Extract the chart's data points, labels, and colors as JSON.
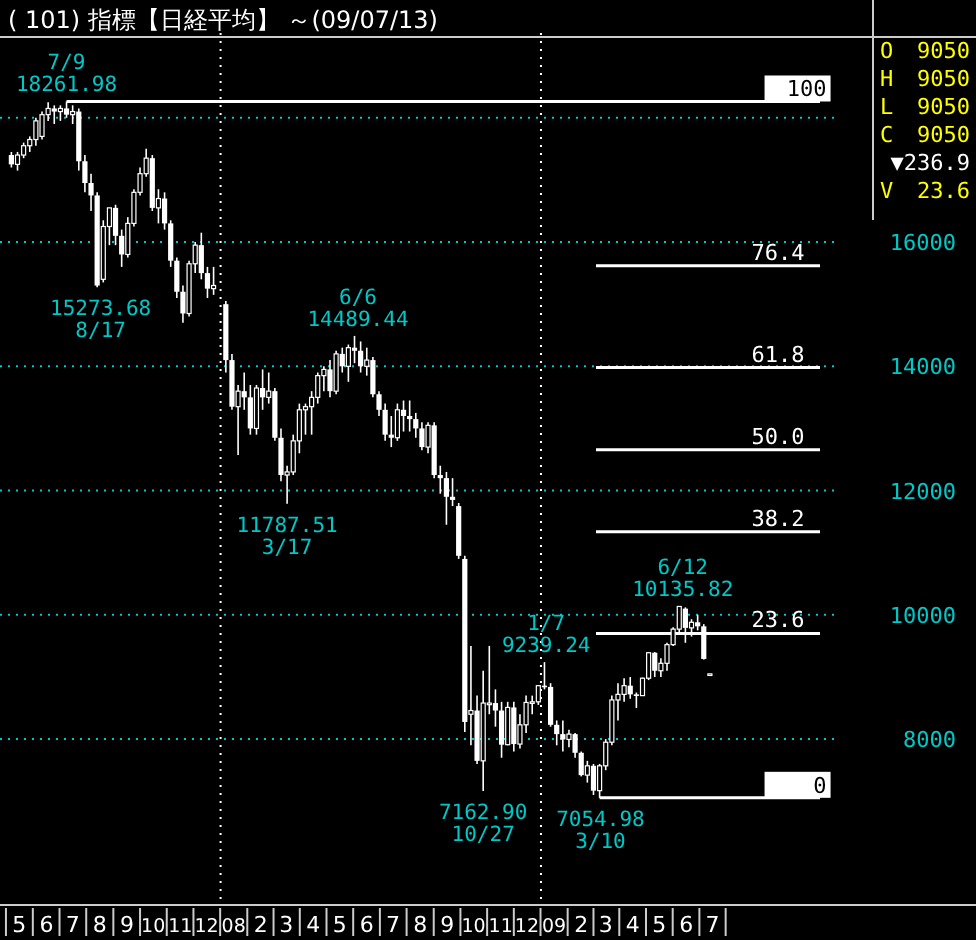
{
  "chart_data": {
    "type": "candlestick",
    "title": "( 101) 指標【日経平均】 ～(09/07/13)",
    "x": [
      "2007-05-07",
      "2007-05-14",
      "2007-05-21",
      "2007-05-28",
      "2007-06-04",
      "2007-06-11",
      "2007-06-18",
      "2007-06-25",
      "2007-07-02",
      "2007-07-09",
      "2007-07-16",
      "2007-07-23",
      "2007-07-30",
      "2007-08-06",
      "2007-08-13",
      "2007-08-20",
      "2007-08-27",
      "2007-09-03",
      "2007-09-10",
      "2007-09-17",
      "2007-09-24",
      "2007-10-01",
      "2007-10-08",
      "2007-10-15",
      "2007-10-22",
      "2007-10-29",
      "2007-11-05",
      "2007-11-12",
      "2007-11-19",
      "2007-11-26",
      "2007-12-03",
      "2007-12-10",
      "2007-12-17",
      "2007-12-24",
      "2008-01-07",
      "2008-01-14",
      "2008-01-21",
      "2008-01-28",
      "2008-02-04",
      "2008-02-11",
      "2008-02-18",
      "2008-02-25",
      "2008-03-03",
      "2008-03-10",
      "2008-03-17",
      "2008-03-24",
      "2008-03-31",
      "2008-04-07",
      "2008-04-14",
      "2008-04-21",
      "2008-04-28",
      "2008-05-05",
      "2008-05-12",
      "2008-05-19",
      "2008-05-26",
      "2008-06-02",
      "2008-06-09",
      "2008-06-16",
      "2008-06-23",
      "2008-06-30",
      "2008-07-07",
      "2008-07-14",
      "2008-07-21",
      "2008-07-28",
      "2008-08-04",
      "2008-08-11",
      "2008-08-18",
      "2008-08-25",
      "2008-09-01",
      "2008-09-08",
      "2008-09-15",
      "2008-09-22",
      "2008-09-29",
      "2008-10-06",
      "2008-10-13",
      "2008-10-20",
      "2008-10-27",
      "2008-11-03",
      "2008-11-10",
      "2008-11-17",
      "2008-11-24",
      "2008-12-01",
      "2008-12-08",
      "2008-12-15",
      "2008-12-22",
      "2008-12-29",
      "2009-01-05",
      "2009-01-12",
      "2009-01-19",
      "2009-01-26",
      "2009-02-02",
      "2009-02-09",
      "2009-02-16",
      "2009-02-23",
      "2009-03-02",
      "2009-03-09",
      "2009-03-16",
      "2009-03-23",
      "2009-03-30",
      "2009-04-06",
      "2009-04-13",
      "2009-04-20",
      "2009-04-27",
      "2009-05-04",
      "2009-05-11",
      "2009-05-18",
      "2009-05-25",
      "2009-06-01",
      "2009-06-08",
      "2009-06-15",
      "2009-06-22",
      "2009-06-29",
      "2009-07-06",
      "2009-07-13"
    ],
    "ohlc": [
      [
        17400,
        17450,
        17200,
        17250
      ],
      [
        17250,
        17450,
        17150,
        17400
      ],
      [
        17400,
        17600,
        17350,
        17550
      ],
      [
        17550,
        17700,
        17450,
        17650
      ],
      [
        17650,
        18000,
        17550,
        17950
      ],
      [
        17700,
        18100,
        17650,
        18050
      ],
      [
        18050,
        18250,
        17950,
        18150
      ],
      [
        18150,
        18200,
        17900,
        18100
      ],
      [
        18100,
        18200,
        17950,
        18150
      ],
      [
        18150,
        18261.98,
        18000,
        18050
      ],
      [
        18050,
        18200,
        17900,
        18100
      ],
      [
        18100,
        18150,
        17150,
        17300
      ],
      [
        17300,
        17400,
        16800,
        16950
      ],
      [
        16950,
        17100,
        16500,
        16750
      ],
      [
        16750,
        16800,
        15273.68,
        15300
      ],
      [
        15400,
        16350,
        15350,
        16250
      ],
      [
        16250,
        16550,
        15950,
        16550
      ],
      [
        16550,
        16600,
        15950,
        16100
      ],
      [
        16100,
        16200,
        15600,
        15800
      ],
      [
        15800,
        16400,
        15750,
        16300
      ],
      [
        16300,
        16850,
        16250,
        16800
      ],
      [
        16800,
        17200,
        16750,
        17100
      ],
      [
        17100,
        17500,
        17050,
        17350
      ],
      [
        17350,
        17400,
        16500,
        16550
      ],
      [
        16550,
        16850,
        16300,
        16700
      ],
      [
        16700,
        16800,
        16200,
        16300
      ],
      [
        16300,
        16350,
        15600,
        15700
      ],
      [
        15700,
        15750,
        15100,
        15200
      ],
      [
        15200,
        15300,
        14700,
        14850
      ],
      [
        14850,
        15700,
        14800,
        15650
      ],
      [
        15650,
        16000,
        15500,
        15950
      ],
      [
        15950,
        16150,
        15400,
        15500
      ],
      [
        15500,
        15600,
        15100,
        15250
      ],
      [
        15250,
        15600,
        15150,
        15300
      ],
      [
        15000,
        15050,
        13900,
        14100
      ],
      [
        14100,
        14200,
        13300,
        13350
      ],
      [
        13350,
        13700,
        12572,
        13600
      ],
      [
        13600,
        13900,
        13300,
        13500
      ],
      [
        13500,
        13700,
        12900,
        13000
      ],
      [
        13000,
        13700,
        12900,
        13650
      ],
      [
        13650,
        13950,
        13300,
        13500
      ],
      [
        13500,
        13900,
        13400,
        13600
      ],
      [
        13600,
        13650,
        12800,
        12850
      ],
      [
        12850,
        13000,
        12150,
        12250
      ],
      [
        12250,
        12400,
        11787.51,
        12300
      ],
      [
        12300,
        12900,
        12250,
        12800
      ],
      [
        12800,
        13400,
        12600,
        13300
      ],
      [
        13300,
        13400,
        12900,
        13350
      ],
      [
        13350,
        13600,
        12900,
        13500
      ],
      [
        13500,
        13900,
        13400,
        13850
      ],
      [
        13850,
        14000,
        13600,
        13950
      ],
      [
        13950,
        14100,
        13500,
        13600
      ],
      [
        13600,
        14250,
        13550,
        14200
      ],
      [
        14200,
        14300,
        13900,
        14000
      ],
      [
        14000,
        14350,
        13750,
        14300
      ],
      [
        14300,
        14489.44,
        14050,
        14250
      ],
      [
        14250,
        14400,
        13900,
        14000
      ],
      [
        14000,
        14300,
        13850,
        14100
      ],
      [
        14100,
        14150,
        13500,
        13550
      ],
      [
        13550,
        13600,
        13200,
        13300
      ],
      [
        13300,
        13400,
        12800,
        12900
      ],
      [
        12900,
        13200,
        12700,
        12850
      ],
      [
        12850,
        13400,
        12800,
        13300
      ],
      [
        13300,
        13450,
        12950,
        13200
      ],
      [
        13200,
        13450,
        12950,
        13150
      ],
      [
        13150,
        13250,
        12850,
        13000
      ],
      [
        13000,
        13100,
        12650,
        12700
      ],
      [
        12700,
        13100,
        12600,
        13050
      ],
      [
        13050,
        13100,
        12200,
        12250
      ],
      [
        12250,
        12400,
        11950,
        12200
      ],
      [
        12200,
        12300,
        11450,
        11900
      ],
      [
        11900,
        12200,
        11750,
        11850
      ],
      [
        11750,
        11800,
        10900,
        10950
      ],
      [
        10900,
        10950,
        8115,
        8276
      ],
      [
        8400,
        9500,
        7900,
        8460
      ],
      [
        8460,
        8700,
        7600,
        7650
      ],
      [
        7650,
        9100,
        7162.9,
        8580
      ],
      [
        8580,
        9500,
        8400,
        8580
      ],
      [
        8580,
        8800,
        8200,
        8460
      ],
      [
        8460,
        8600,
        7700,
        7910
      ],
      [
        7910,
        8600,
        7900,
        8510
      ],
      [
        8510,
        8600,
        7800,
        7920
      ],
      [
        7920,
        8400,
        7850,
        8230
      ],
      [
        8230,
        8700,
        8100,
        8590
      ],
      [
        8590,
        8700,
        8400,
        8600
      ],
      [
        8600,
        8860,
        8550,
        8860
      ],
      [
        8860,
        9239.24,
        8800,
        8840
      ],
      [
        8840,
        8900,
        8200,
        8230
      ],
      [
        8230,
        8300,
        7900,
        8080
      ],
      [
        8080,
        8300,
        7800,
        7995
      ],
      [
        7995,
        8150,
        7870,
        8080
      ],
      [
        8080,
        8100,
        7700,
        7780
      ],
      [
        7780,
        7800,
        7400,
        7420
      ],
      [
        7420,
        7650,
        7300,
        7570
      ],
      [
        7570,
        7600,
        7100,
        7170
      ],
      [
        7170,
        7600,
        7054.98,
        7570
      ],
      [
        7570,
        8000,
        7500,
        7950
      ],
      [
        7950,
        8700,
        7900,
        8630
      ],
      [
        8630,
        8900,
        8300,
        8720
      ],
      [
        8720,
        8980,
        8600,
        8860
      ],
      [
        8860,
        9000,
        8650,
        8720
      ],
      [
        8720,
        8750,
        8500,
        8700
      ],
      [
        8700,
        8990,
        8700,
        8980
      ],
      [
        8980,
        9400,
        8950,
        9390
      ],
      [
        9390,
        9400,
        9000,
        9100
      ],
      [
        9100,
        9300,
        9000,
        9220
      ],
      [
        9220,
        9550,
        9100,
        9520
      ],
      [
        9520,
        9800,
        9500,
        9770
      ],
      [
        9770,
        10135.82,
        9700,
        10135
      ],
      [
        10100,
        10120,
        9550,
        9790
      ],
      [
        9790,
        9930,
        9650,
        9880
      ],
      [
        9880,
        10000,
        9750,
        9815
      ],
      [
        9815,
        9850,
        9280,
        9290
      ],
      [
        9050,
        9050,
        9050,
        9050
      ]
    ],
    "xlim": [
      "2007-04-24",
      "2010-05-13"
    ],
    "xticks": [
      {
        "value": "2007-05-16",
        "label": "5"
      },
      {
        "value": "2007-06-16",
        "label": "6"
      },
      {
        "value": "2007-07-16",
        "label": "7"
      },
      {
        "value": "2007-08-16",
        "label": "8"
      },
      {
        "value": "2007-09-16",
        "label": "9"
      },
      {
        "value": "2007-10-16",
        "label": "10"
      },
      {
        "value": "2007-11-16",
        "label": "11"
      },
      {
        "value": "2007-12-16",
        "label": "12"
      },
      {
        "value": "2008-01-16",
        "label": "08"
      },
      {
        "value": "2008-02-16",
        "label": "2"
      },
      {
        "value": "2008-03-16",
        "label": "3"
      },
      {
        "value": "2008-04-16",
        "label": "4"
      },
      {
        "value": "2008-05-16",
        "label": "5"
      },
      {
        "value": "2008-06-16",
        "label": "6"
      },
      {
        "value": "2008-07-16",
        "label": "7"
      },
      {
        "value": "2008-08-16",
        "label": "8"
      },
      {
        "value": "2008-09-16",
        "label": "9"
      },
      {
        "value": "2008-10-16",
        "label": "10"
      },
      {
        "value": "2008-11-16",
        "label": "11"
      },
      {
        "value": "2008-12-16",
        "label": "12"
      },
      {
        "value": "2009-01-16",
        "label": "09"
      },
      {
        "value": "2009-02-16",
        "label": "2"
      },
      {
        "value": "2009-03-16",
        "label": "3"
      },
      {
        "value": "2009-04-16",
        "label": "4"
      },
      {
        "value": "2009-05-16",
        "label": "5"
      },
      {
        "value": "2009-06-16",
        "label": "6"
      },
      {
        "value": "2009-07-16",
        "label": "7"
      }
    ],
    "ylim": [
      5330,
      19300
    ],
    "yticks": [
      8000,
      10000,
      12000,
      14000,
      16000,
      {
        "value": 18000,
        "label": null
      }
    ],
    "grid": "y",
    "ref_lines": [
      {
        "axis": "x",
        "value": "2008-01-01",
        "color": "#ffffff",
        "line_style": "dotted"
      },
      {
        "axis": "x",
        "value": "2009-01-01",
        "color": "#ffffff",
        "line_style": "dotted"
      },
      {
        "axis": "y",
        "value": 18261.98,
        "color": "#ffffff"
      },
      {
        "axis": "y",
        "value": 15617,
        "color": "#ffffff"
      },
      {
        "axis": "y",
        "value": 13980,
        "color": "#ffffff"
      },
      {
        "axis": "y",
        "value": 12658,
        "color": "#ffffff"
      },
      {
        "axis": "y",
        "value": 11336,
        "color": "#ffffff"
      },
      {
        "axis": "y",
        "value": 9700,
        "color": "#ffffff"
      },
      {
        "axis": "y",
        "value": 7054.98,
        "color": "#ffffff"
      }
    ],
    "annotations": [
      {
        "text": "100",
        "x": "2009-10-20",
        "y": 18261.98
      },
      {
        "text": "76.4",
        "x": "2009-10-20",
        "y": 15617
      },
      {
        "text": "61.8",
        "x": "2009-10-20",
        "y": 13980
      },
      {
        "text": "50.0",
        "x": "2009-10-20",
        "y": 12658
      },
      {
        "text": "38.2",
        "x": "2009-10-20",
        "y": 11336
      },
      {
        "text": "23.6",
        "x": "2009-10-20",
        "y": 9700
      },
      {
        "text": "0",
        "x": "2009-10-20",
        "y": 7054.98
      },
      {
        "text": "7/9",
        "x": "2007-07-09",
        "y": 18261.98
      },
      {
        "text": "18261.98",
        "x": "2007-07-09",
        "y": 18261.98
      },
      {
        "text": "15273.68",
        "x": "2007-08-17",
        "y": 15273.68
      },
      {
        "text": "8/17",
        "x": "2007-08-17",
        "y": 15273.68
      },
      {
        "text": "6/6",
        "x": "2008-06-06",
        "y": 14489.44
      },
      {
        "text": "14489.44",
        "x": "2008-06-06",
        "y": 14489.44
      },
      {
        "text": "11787.51",
        "x": "2008-03-17",
        "y": 11787.51
      },
      {
        "text": "3/17",
        "x": "2008-03-17",
        "y": 11787.51
      },
      {
        "text": "1/7",
        "x": "2009-01-07",
        "y": 9239.24
      },
      {
        "text": "9239.24",
        "x": "2009-01-07",
        "y": 9239.24
      },
      {
        "text": "7162.90",
        "x": "2008-10-27",
        "y": 7162.9
      },
      {
        "text": "10/27",
        "x": "2008-10-27",
        "y": 7162.9
      },
      {
        "text": "7054.98",
        "x": "2009-03-10",
        "y": 7054.98
      },
      {
        "text": "3/10",
        "x": "2009-03-10",
        "y": 7054.98
      },
      {
        "text": "6/12",
        "x": "2009-06-12",
        "y": 10135.82
      },
      {
        "text": "10135.82",
        "x": "2009-06-12",
        "y": 10135.82
      },
      "O 9050",
      "H 9050",
      "L 9050",
      "C 9050",
      "▼236.9",
      "V 23.6"
    ]
  }
}
